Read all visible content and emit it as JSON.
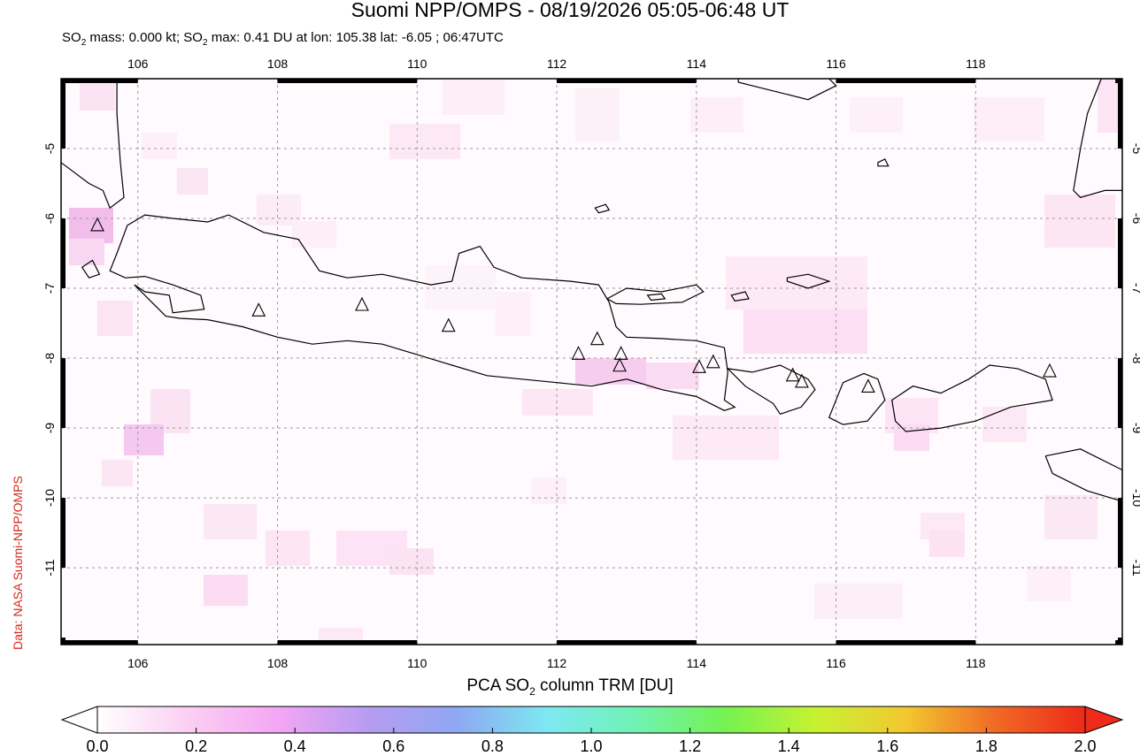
{
  "title": "Suomi NPP/OMPS - 08/19/2026 05:05-06:48 UT",
  "subtitle": {
    "part1": "SO",
    "sub1": "2",
    "part2": " mass: 0.000 kt; SO",
    "sub2": "2",
    "part3": " max: 0.41 DU at lon: 105.38 lat: -6.05 ; 06:47UTC"
  },
  "credit": "Data: NASA Suomi-NPP/OMPS",
  "map": {
    "lon_range": [
      104.9,
      120.1
    ],
    "lat_range": [
      -12.1,
      -4.0
    ],
    "lon_ticks": [
      "106",
      "108",
      "110",
      "112",
      "114",
      "116",
      "118"
    ],
    "lat_ticks": [
      "-5",
      "-6",
      "-7",
      "-8",
      "-9",
      "-10",
      "-11"
    ],
    "volcanoes": [
      {
        "lon": 105.42,
        "lat": -6.1
      },
      {
        "lon": 107.73,
        "lat": -7.32
      },
      {
        "lon": 109.21,
        "lat": -7.24
      },
      {
        "lon": 110.45,
        "lat": -7.54
      },
      {
        "lon": 112.31,
        "lat": -7.94
      },
      {
        "lon": 112.58,
        "lat": -7.73
      },
      {
        "lon": 112.92,
        "lat": -7.94
      },
      {
        "lon": 112.9,
        "lat": -8.11
      },
      {
        "lon": 114.04,
        "lat": -8.13
      },
      {
        "lon": 114.24,
        "lat": -8.06
      },
      {
        "lon": 115.38,
        "lat": -8.25
      },
      {
        "lon": 115.51,
        "lat": -8.34
      },
      {
        "lon": 116.46,
        "lat": -8.41
      },
      {
        "lon": 119.06,
        "lat": -8.19
      }
    ]
  },
  "colorbar": {
    "label_pre": "PCA SO",
    "label_sub": "2",
    "label_post": " column TRM [DU]",
    "ticks": [
      "0.0",
      "0.2",
      "0.4",
      "0.6",
      "0.8",
      "1.0",
      "1.2",
      "1.4",
      "1.6",
      "1.8",
      "2.0"
    ],
    "colors": [
      "#ffffff",
      "#fbd0f2",
      "#f4a6f4",
      "#b79cf1",
      "#8fa7f2",
      "#7de8f2",
      "#70f2b4",
      "#74f250",
      "#c7f232",
      "#f2c830",
      "#f06a25",
      "#ee2a1a"
    ]
  }
}
